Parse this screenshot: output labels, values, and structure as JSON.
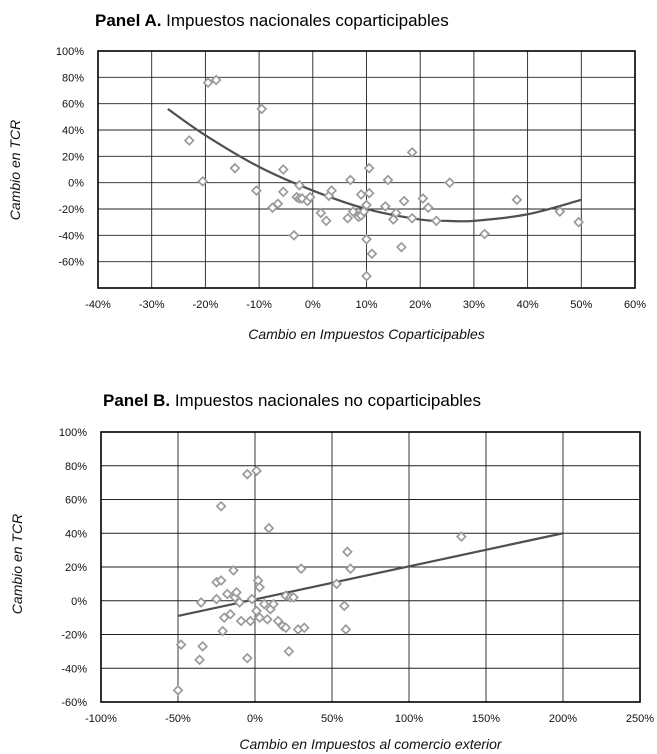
{
  "panels": [
    {
      "title_bold": "Panel A.",
      "title_rest": " Impuestos nacionales coparticipables"
    },
    {
      "title_bold": "Panel B.",
      "title_rest": " Impuestos nacionales no coparticipables"
    }
  ],
  "colors": {
    "marker": "#9a9a9a",
    "trend": "#505050",
    "grid": "#222222"
  },
  "chart_data": [
    {
      "type": "scatter",
      "title": "Panel A. Impuestos nacionales coparticipables",
      "xlabel": "Cambio en Impuestos Coparticipables",
      "ylabel": "Cambio en TCR",
      "xlim": [
        -40,
        60
      ],
      "ylim": [
        -80,
        100
      ],
      "x_ticks": [
        -40,
        -30,
        -20,
        -10,
        0,
        10,
        20,
        30,
        40,
        50,
        60
      ],
      "y_ticks": [
        -80,
        -60,
        -40,
        -20,
        0,
        20,
        40,
        60,
        80,
        100
      ],
      "x_tick_labels": [
        "-40%",
        "-30%",
        "-20%",
        "-10%",
        "0%",
        "10%",
        "20%",
        "30%",
        "40%",
        "50%",
        "60%"
      ],
      "y_tick_labels": [
        "",
        "-60%",
        "-40%",
        "-20%",
        "0%",
        "20%",
        "40%",
        "60%",
        "80%",
        "100%"
      ],
      "grid": true,
      "marker": "diamond",
      "points": [
        [
          -19.5,
          76
        ],
        [
          -18,
          78
        ],
        [
          -9.5,
          56
        ],
        [
          -23,
          32
        ],
        [
          -20.5,
          1
        ],
        [
          -14.5,
          11
        ],
        [
          -10.5,
          -6
        ],
        [
          -7.5,
          -19
        ],
        [
          -6.5,
          -16
        ],
        [
          -5.5,
          -7
        ],
        [
          -5.5,
          10
        ],
        [
          -3.5,
          -40
        ],
        [
          -3,
          -11
        ],
        [
          -2.5,
          -2
        ],
        [
          -2.5,
          -12
        ],
        [
          -2,
          -12
        ],
        [
          -1,
          -14
        ],
        [
          -0.5,
          -11
        ],
        [
          1.5,
          -23
        ],
        [
          2.5,
          -29
        ],
        [
          3,
          -10
        ],
        [
          3.5,
          -6
        ],
        [
          6.5,
          -27
        ],
        [
          7,
          2
        ],
        [
          7.5,
          -22
        ],
        [
          8.5,
          -26
        ],
        [
          9,
          -9
        ],
        [
          9,
          -25
        ],
        [
          9.5,
          -22
        ],
        [
          10,
          -43
        ],
        [
          10,
          -17
        ],
        [
          10.5,
          -8
        ],
        [
          10.5,
          11
        ],
        [
          11,
          -54
        ],
        [
          10,
          -71
        ],
        [
          13.5,
          -18
        ],
        [
          14,
          2
        ],
        [
          15,
          -28
        ],
        [
          15.5,
          -23
        ],
        [
          16.5,
          -49
        ],
        [
          17,
          -14
        ],
        [
          18.5,
          -27
        ],
        [
          18.5,
          23
        ],
        [
          20.5,
          -12
        ],
        [
          21.5,
          -19
        ],
        [
          23,
          -29
        ],
        [
          25.5,
          0
        ],
        [
          32,
          -39
        ],
        [
          38,
          -13
        ],
        [
          46,
          -22
        ],
        [
          49.5,
          -30
        ]
      ],
      "trendline": {
        "type": "quadratic",
        "x_range": [
          -27,
          50
        ],
        "curve": [
          [
            -27,
            56
          ],
          [
            -20,
            36
          ],
          [
            -10,
            12
          ],
          [
            0,
            -6
          ],
          [
            10,
            -20
          ],
          [
            20,
            -28
          ],
          [
            25,
            -29
          ],
          [
            30,
            -29
          ],
          [
            40,
            -24
          ],
          [
            50,
            -13
          ]
        ]
      }
    },
    {
      "type": "scatter",
      "title": "Panel B. Impuestos nacionales no coparticipables",
      "xlabel": "Cambio en Impuestos al comercio exterior",
      "ylabel": "Cambio en TCR",
      "xlim": [
        -100,
        250
      ],
      "ylim": [
        -60,
        100
      ],
      "x_ticks": [
        -100,
        -50,
        0,
        50,
        100,
        150,
        200,
        250
      ],
      "y_ticks": [
        -60,
        -40,
        -20,
        0,
        20,
        40,
        60,
        80,
        100
      ],
      "x_tick_labels": [
        "-100%",
        "-50%",
        "0%",
        "50%",
        "100%",
        "150%",
        "200%",
        "250%"
      ],
      "y_tick_labels": [
        "-60%",
        "-40%",
        "-20%",
        "0%",
        "20%",
        "40%",
        "60%",
        "80%",
        "100%"
      ],
      "grid": true,
      "marker": "diamond",
      "points": [
        [
          -50,
          -53
        ],
        [
          -48,
          -26
        ],
        [
          -36,
          -35
        ],
        [
          -34,
          -27
        ],
        [
          -35,
          -1
        ],
        [
          -25,
          11
        ],
        [
          -25,
          1
        ],
        [
          -22,
          56
        ],
        [
          -22,
          12
        ],
        [
          -21,
          -18
        ],
        [
          -20,
          -10
        ],
        [
          -18,
          4
        ],
        [
          -16,
          -8
        ],
        [
          -14,
          18
        ],
        [
          -13,
          2
        ],
        [
          -12,
          5
        ],
        [
          -10,
          -1
        ],
        [
          -9,
          -12
        ],
        [
          -5,
          75
        ],
        [
          -5,
          -34
        ],
        [
          -3,
          -12
        ],
        [
          -2,
          1
        ],
        [
          1,
          77
        ],
        [
          1,
          -6
        ],
        [
          2,
          12
        ],
        [
          3,
          -10
        ],
        [
          3,
          8
        ],
        [
          6,
          -2
        ],
        [
          8,
          -11
        ],
        [
          9,
          43
        ],
        [
          10,
          -5
        ],
        [
          12,
          -2
        ],
        [
          15,
          -12
        ],
        [
          18,
          -15
        ],
        [
          20,
          3
        ],
        [
          20,
          -16
        ],
        [
          22,
          -30
        ],
        [
          23,
          2
        ],
        [
          25,
          2
        ],
        [
          28,
          -17
        ],
        [
          30,
          19
        ],
        [
          32,
          -16
        ],
        [
          53,
          10
        ],
        [
          58,
          -3
        ],
        [
          59,
          -17
        ],
        [
          60,
          29
        ],
        [
          62,
          19
        ],
        [
          134,
          38
        ]
      ],
      "trendline": {
        "type": "linear",
        "points": [
          [
            -50,
            -9
          ],
          [
            200,
            40
          ]
        ]
      }
    }
  ]
}
